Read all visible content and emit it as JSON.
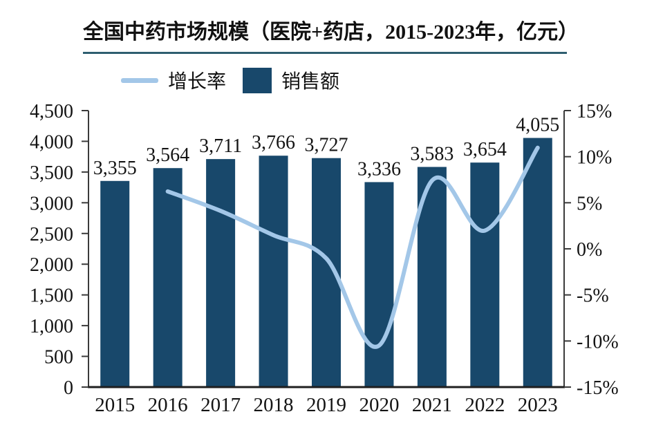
{
  "chart": {
    "title": "全国中药市场规模（医院+药店，2015-2023年，亿元）",
    "legend": {
      "growth_label": "增长率",
      "sales_label": "销售额"
    }
  },
  "chart_data": {
    "type": "bar",
    "subtype": "combo-bar-line-dual-axis",
    "title": "全国中药市场规模（医院+药店，2015-2023年，亿元）",
    "categories": [
      "2015",
      "2016",
      "2017",
      "2018",
      "2019",
      "2020",
      "2021",
      "2022",
      "2023"
    ],
    "series": [
      {
        "name": "销售额",
        "type": "bar",
        "axis": "left",
        "unit": "亿元",
        "values": [
          3355,
          3564,
          3711,
          3766,
          3727,
          3336,
          3583,
          3654,
          4055
        ],
        "data_labels": [
          "3,355",
          "3,564",
          "3,711",
          "3,766",
          "3,727",
          "3,336",
          "3,583",
          "3,654",
          "4,055"
        ]
      },
      {
        "name": "增长率",
        "type": "line",
        "axis": "right",
        "unit": "%",
        "values": [
          null,
          6.23,
          4.12,
          1.48,
          -1.04,
          -10.49,
          7.4,
          1.98,
          10.97
        ]
      }
    ],
    "left_axis": {
      "min": 0,
      "max": 4500,
      "step": 500,
      "tick_labels": [
        "0",
        "500",
        "1,000",
        "1,500",
        "2,000",
        "2,500",
        "3,000",
        "3,500",
        "4,000",
        "4,500"
      ]
    },
    "right_axis": {
      "min": -15,
      "max": 15,
      "step": 5,
      "tick_labels": [
        "-15%",
        "-10%",
        "-5%",
        "0%",
        "5%",
        "10%",
        "15%"
      ]
    },
    "grid": false,
    "legend_position": "top-left",
    "smooth_line": true
  },
  "colors": {
    "bar": "#18486b",
    "line": "#a3c7e8",
    "title_underline": "#2e5e70",
    "axis": "#3a3a3a",
    "bottom_axis": "#1f1f1f",
    "text": "#141414"
  }
}
